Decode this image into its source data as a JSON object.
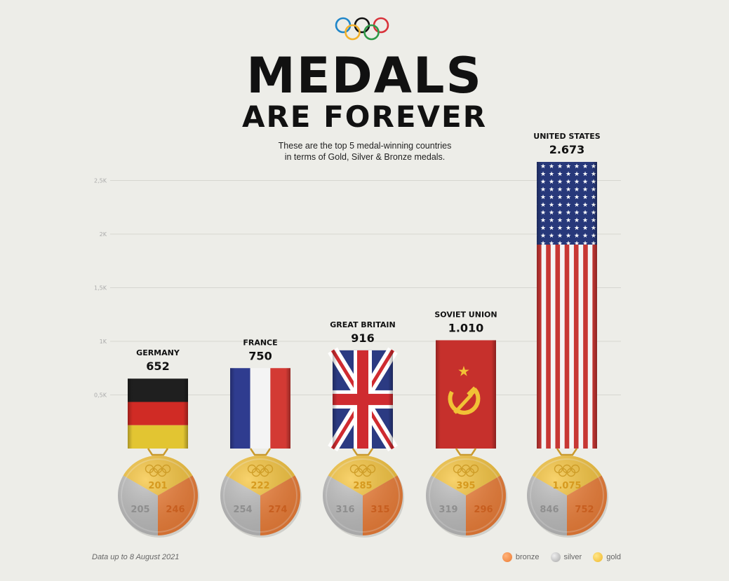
{
  "header": {
    "title_line1": "MEDALS",
    "title_line2": "ARE FOREVER",
    "subtitle_line1": "These are the top 5 medal-winning countries",
    "subtitle_line2": "in terms of Gold, Silver & Bronze medals."
  },
  "footer": {
    "source": "Data up to 8 August 2021",
    "legend": [
      "bronze",
      "silver",
      "gold"
    ]
  },
  "colors": {
    "bronze": "#ee7e37",
    "silver": "#bdbdbd",
    "gold": "#f6c43c",
    "background": "#edede8"
  },
  "chart_data": {
    "type": "bar",
    "categories": [
      "GERMANY",
      "FRANCE",
      "GREAT BRITAIN",
      "SOVIET UNION",
      "UNITED STATES"
    ],
    "values": [
      652,
      750,
      916,
      1010,
      2673
    ],
    "value_labels": [
      "652",
      "750",
      "916",
      "1.010",
      "2.673"
    ],
    "flags": [
      "germany-flag",
      "france-flag",
      "uk-flag",
      "ussr-flag",
      "usa-flag"
    ],
    "ylim": [
      0,
      2700
    ],
    "yticks": [
      500,
      1000,
      1500,
      2000,
      2500
    ],
    "ytick_labels": [
      "0,5K",
      "1K",
      "1,5K",
      "2K",
      "2,5K"
    ],
    "grid": true,
    "legend_position": "bottom-right",
    "medals": [
      {
        "gold": "201",
        "silver": "205",
        "bronze": "246"
      },
      {
        "gold": "222",
        "silver": "254",
        "bronze": "274"
      },
      {
        "gold": "285",
        "silver": "316",
        "bronze": "315"
      },
      {
        "gold": "395",
        "silver": "319",
        "bronze": "296"
      },
      {
        "gold": "1.075",
        "silver": "846",
        "bronze": "752"
      }
    ]
  }
}
